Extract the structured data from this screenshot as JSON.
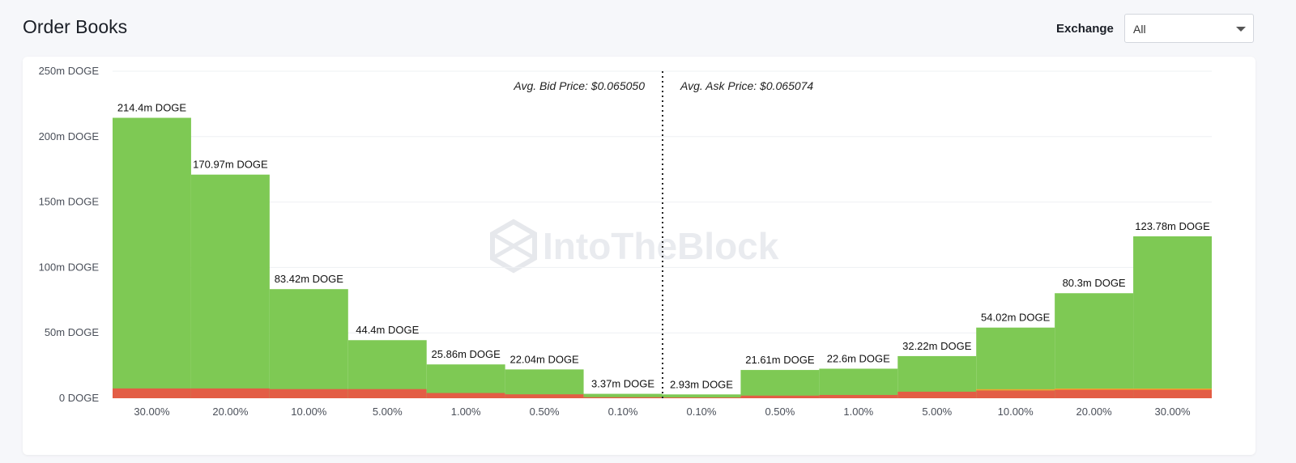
{
  "header": {
    "title": "Order Books",
    "exchange_label": "Exchange",
    "exchange_value": "All"
  },
  "watermark": "IntoTheBlock",
  "chart_data": {
    "type": "bar",
    "y_ticks": [
      "0 DOGE",
      "50m DOGE",
      "100m DOGE",
      "150m DOGE",
      "200m DOGE",
      "250m DOGE"
    ],
    "ylim": [
      0,
      250
    ],
    "y_unit": "m DOGE",
    "grid": true,
    "categories": [
      "30.00%",
      "20.00%",
      "10.00%",
      "5.00%",
      "1.00%",
      "0.50%",
      "0.10%",
      "0.10%",
      "0.50%",
      "1.00%",
      "5.00%",
      "10.00%",
      "20.00%",
      "30.00%"
    ],
    "sides": [
      "bid",
      "bid",
      "bid",
      "bid",
      "bid",
      "bid",
      "bid",
      "ask",
      "ask",
      "ask",
      "ask",
      "ask",
      "ask",
      "ask"
    ],
    "values": [
      214.4,
      170.97,
      83.42,
      44.4,
      25.86,
      22.04,
      3.37,
      2.93,
      21.61,
      22.6,
      32.22,
      54.02,
      80.3,
      123.78
    ],
    "value_labels": [
      "214.4m DOGE",
      "170.97m DOGE",
      "83.42m DOGE",
      "44.4m DOGE",
      "25.86m DOGE",
      "22.04m DOGE",
      "3.37m DOGE",
      "2.93m DOGE",
      "21.61m DOGE",
      "22.6m DOGE",
      "32.22m DOGE",
      "54.02m DOGE",
      "80.3m DOGE",
      "123.78m DOGE"
    ],
    "red_segment_values": [
      7.5,
      7.5,
      7.0,
      7.0,
      4.0,
      3.0,
      0.8,
      0.6,
      2.0,
      2.5,
      5.0,
      6.0,
      6.5,
      6.5
    ],
    "colors": {
      "green": "#7ec954",
      "red": "#e35d45",
      "orange": "#f2a62f",
      "grid": "#eef0f3"
    },
    "avg_bid_label": "Avg. Bid Price: $0.065050",
    "avg_ask_label": "Avg. Ask Price: $0.065074"
  }
}
